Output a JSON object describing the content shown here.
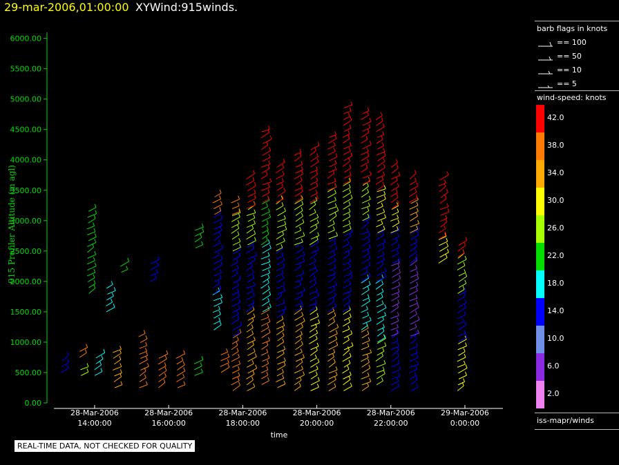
{
  "header": {
    "date": "29-mar-2006,01:00:00",
    "title": "XYWind:915winds."
  },
  "footer_note": "REAL-TIME DATA, NOT CHECKED FOR QUALITY",
  "legend": {
    "barb_title": "barb flags in knots",
    "barb_entries": [
      "== 100",
      "== 50",
      "== 10",
      "== 5"
    ],
    "speed_title": "wind-speed: knots",
    "colorbar": [
      {
        "label": "42.0",
        "color": "#ff0000"
      },
      {
        "label": "38.0",
        "color": "#ff7a00"
      },
      {
        "label": "34.0",
        "color": "#ffaa00"
      },
      {
        "label": "30.0",
        "color": "#ffff00"
      },
      {
        "label": "26.0",
        "color": "#a8ff00"
      },
      {
        "label": "22.0",
        "color": "#00dd00"
      },
      {
        "label": "18.0",
        "color": "#00ffff"
      },
      {
        "label": "14.0",
        "color": "#0000ff"
      },
      {
        "label": "10.0",
        "color": "#6f8fe8"
      },
      {
        "label": "6.0",
        "color": "#8a2be2"
      },
      {
        "label": "2.0",
        "color": "#ee82ee"
      }
    ],
    "source": "iss-mapr/winds"
  },
  "chart_data": {
    "type": "scatter",
    "xlabel": "time",
    "ylabel": "915 Profiler Altitude (m agl)",
    "ylim": [
      0,
      6200
    ],
    "yticks": [
      "0.00",
      "500.00",
      "1000.00",
      "1500.00",
      "2000.00",
      "2500.00",
      "3000.00",
      "3500.00",
      "4000.00",
      "4500.00",
      "5000.00",
      "5500.00",
      "6000.00"
    ],
    "xticks": [
      {
        "h": 14,
        "date": "28-Mar-2006",
        "time": "14:00:00"
      },
      {
        "h": 16,
        "date": "28-Mar-2006",
        "time": "16:00:00"
      },
      {
        "h": 18,
        "date": "28-Mar-2006",
        "time": "18:00:00"
      },
      {
        "h": 20,
        "date": "28-Mar-2006",
        "time": "20:00:00"
      },
      {
        "h": 22,
        "date": "28-Mar-2006",
        "time": "22:00:00"
      },
      {
        "h": 24,
        "date": "29-Mar-2006",
        "time": "0:00:00"
      }
    ],
    "xlim_hours": [
      12.9,
      25.4
    ],
    "x_units": "hours since 28-Mar-2006 00:00",
    "profiles": [
      {
        "t": 13.2,
        "segments": [
          [
            500,
            700,
            12
          ]
        ]
      },
      {
        "t": 13.7,
        "segments": [
          [
            450,
            600,
            24
          ]
        ]
      },
      {
        "t": 13.7,
        "segments": [
          [
            750,
            900,
            36
          ]
        ]
      },
      {
        "t": 13.9,
        "segments": [
          [
            1800,
            3200,
            22
          ]
        ]
      },
      {
        "t": 14.1,
        "segments": [
          [
            450,
            800,
            16
          ]
        ]
      },
      {
        "t": 14.4,
        "segments": [
          [
            1500,
            1900,
            16
          ]
        ]
      },
      {
        "t": 14.6,
        "segments": [
          [
            250,
            900,
            33
          ]
        ]
      },
      {
        "t": 14.8,
        "segments": [
          [
            2150,
            2300,
            20
          ]
        ]
      },
      {
        "t": 15.3,
        "segments": [
          [
            800,
            1100,
            36
          ]
        ]
      },
      {
        "t": 15.3,
        "segments": [
          [
            250,
            750,
            36
          ]
        ]
      },
      {
        "t": 15.6,
        "segments": [
          [
            2000,
            2300,
            12
          ]
        ]
      },
      {
        "t": 15.8,
        "segments": [
          [
            250,
            750,
            36
          ]
        ]
      },
      {
        "t": 16.3,
        "segments": [
          [
            250,
            750,
            37
          ]
        ]
      },
      {
        "t": 16.8,
        "segments": [
          [
            450,
            700,
            22
          ]
        ]
      },
      {
        "t": 16.8,
        "segments": [
          [
            2550,
            2900,
            22
          ]
        ]
      },
      {
        "t": 17.3,
        "segments": [
          [
            1200,
            1800,
            18
          ],
          [
            1800,
            3100,
            14
          ],
          [
            3100,
            3400,
            36
          ]
        ]
      },
      {
        "t": 17.5,
        "segments": [
          [
            500,
            800,
            36
          ]
        ]
      },
      {
        "t": 17.8,
        "segments": [
          [
            200,
            1100,
            38
          ],
          [
            1100,
            2500,
            14
          ],
          [
            2500,
            3100,
            24
          ],
          [
            3100,
            3300,
            38
          ]
        ]
      },
      {
        "t": 18.2,
        "segments": [
          [
            200,
            1500,
            34
          ],
          [
            1500,
            2600,
            14
          ],
          [
            2600,
            3200,
            24
          ],
          [
            3200,
            3700,
            42
          ]
        ]
      },
      {
        "t": 18.6,
        "segments": [
          [
            300,
            1500,
            36
          ],
          [
            1500,
            2600,
            16
          ],
          [
            2600,
            3300,
            22
          ],
          [
            3300,
            4500,
            42
          ]
        ]
      },
      {
        "t": 19.0,
        "segments": [
          [
            250,
            1400,
            32
          ],
          [
            1400,
            2500,
            14
          ],
          [
            2500,
            3300,
            26
          ],
          [
            3300,
            3900,
            42
          ]
        ]
      },
      {
        "t": 19.5,
        "segments": [
          [
            200,
            1500,
            34
          ],
          [
            1500,
            2600,
            15
          ],
          [
            2600,
            3300,
            24
          ],
          [
            3300,
            4100,
            42
          ]
        ]
      },
      {
        "t": 19.9,
        "segments": [
          [
            200,
            1500,
            30
          ],
          [
            1500,
            2600,
            14
          ],
          [
            2600,
            3300,
            24
          ],
          [
            3300,
            4200,
            42
          ]
        ]
      },
      {
        "t": 20.4,
        "segments": [
          [
            200,
            1500,
            32
          ],
          [
            1500,
            2700,
            14
          ],
          [
            2700,
            3500,
            26
          ],
          [
            3500,
            4400,
            42
          ]
        ]
      },
      {
        "t": 20.8,
        "segments": [
          [
            200,
            1500,
            30
          ],
          [
            1500,
            2800,
            14
          ],
          [
            2800,
            3600,
            24
          ],
          [
            3600,
            4900,
            42
          ]
        ]
      },
      {
        "t": 21.3,
        "segments": [
          [
            200,
            1200,
            32
          ],
          [
            1200,
            2000,
            18
          ],
          [
            2000,
            3000,
            14
          ],
          [
            3000,
            3600,
            26
          ],
          [
            3600,
            4800,
            42
          ]
        ]
      },
      {
        "t": 21.7,
        "segments": [
          [
            300,
            1000,
            26
          ],
          [
            1000,
            2000,
            16
          ],
          [
            2000,
            2800,
            14
          ],
          [
            2800,
            3500,
            28
          ],
          [
            3500,
            4700,
            42
          ]
        ]
      },
      {
        "t": 22.1,
        "segments": [
          [
            200,
            1100,
            14
          ],
          [
            1100,
            2300,
            6
          ],
          [
            2300,
            2800,
            14
          ],
          [
            2800,
            3200,
            28
          ],
          [
            3200,
            3900,
            42
          ]
        ]
      },
      {
        "t": 22.6,
        "segments": [
          [
            200,
            1100,
            12
          ],
          [
            1100,
            2300,
            6
          ],
          [
            2300,
            2800,
            14
          ],
          [
            2800,
            3300,
            34
          ],
          [
            3300,
            3700,
            42
          ]
        ]
      },
      {
        "t": 23.4,
        "segments": [
          [
            2300,
            2700,
            30
          ],
          [
            2700,
            3700,
            42
          ]
        ]
      },
      {
        "t": 23.9,
        "segments": [
          [
            200,
            1000,
            30
          ],
          [
            1000,
            1800,
            14
          ],
          [
            1800,
            2400,
            26
          ],
          [
            2400,
            2600,
            42
          ]
        ]
      }
    ]
  }
}
